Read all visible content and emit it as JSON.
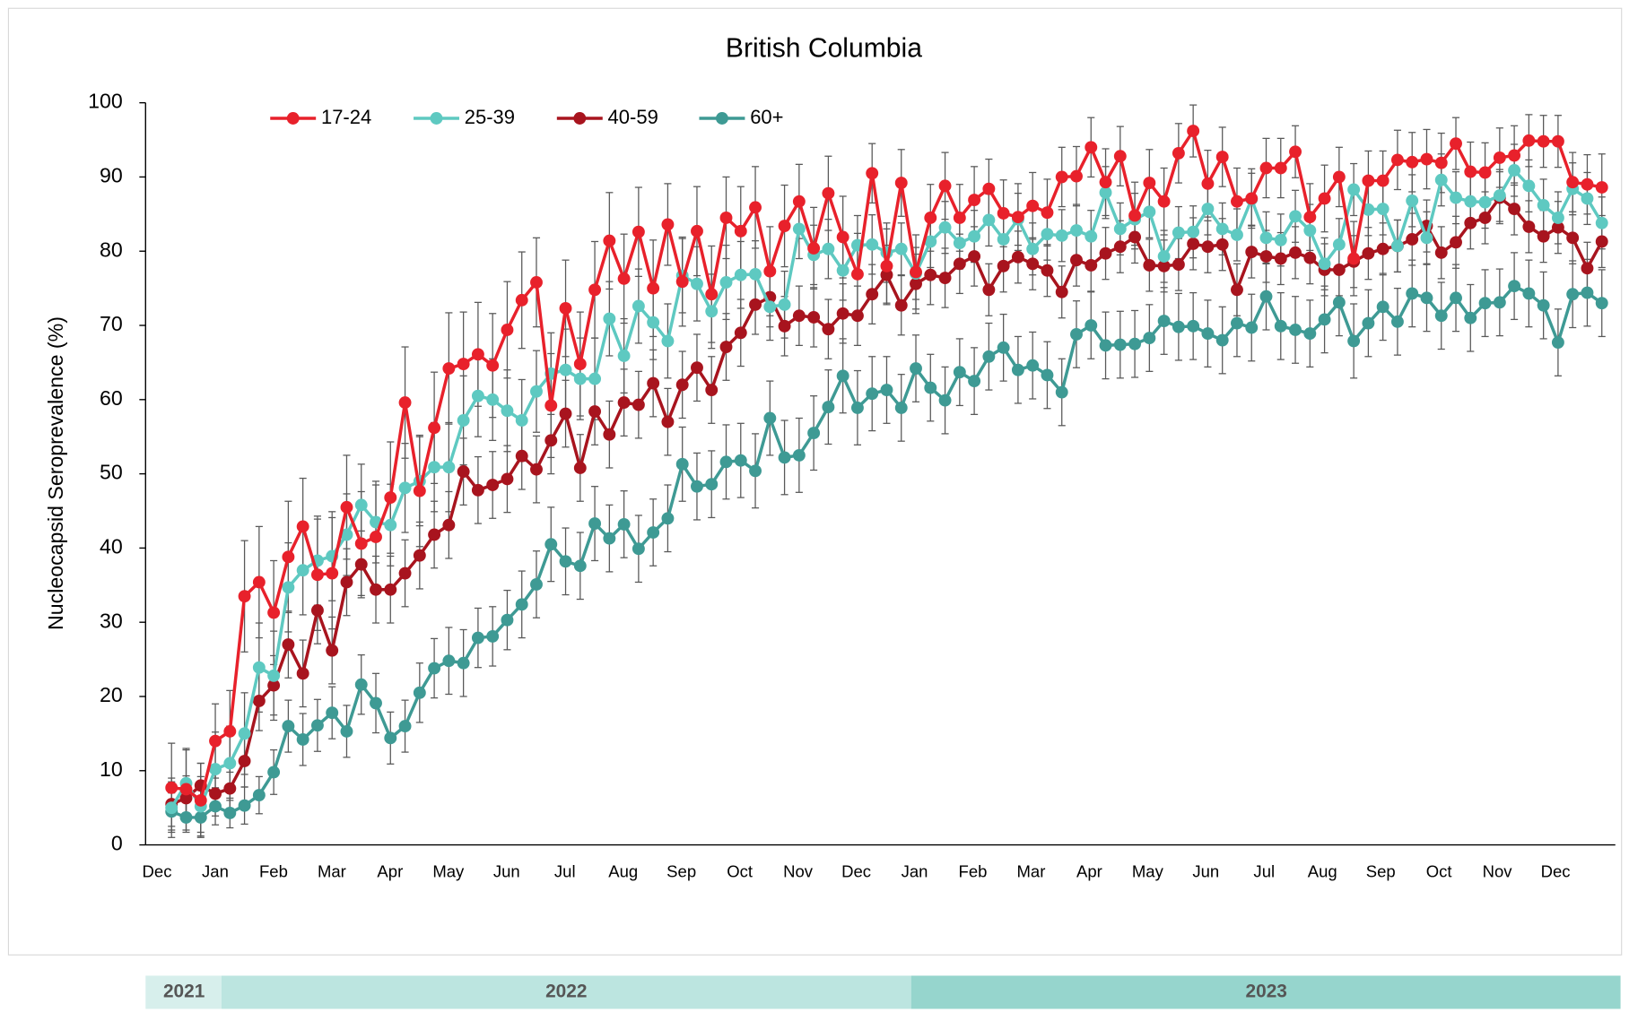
{
  "chart_data": {
    "type": "line",
    "title": "British Columbia",
    "y_label": "Nucleocapsid Seroprevalence (%)",
    "ylim": [
      0,
      100
    ],
    "yticks": [
      0,
      10,
      20,
      30,
      40,
      50,
      60,
      70,
      80,
      90,
      100
    ],
    "grid": false,
    "legend": "top-left",
    "error_bars": true,
    "month_labels": [
      "Dec",
      "Jan",
      "Feb",
      "Mar",
      "Apr",
      "May",
      "Jun",
      "Jul",
      "Aug",
      "Sep",
      "Oct",
      "Nov",
      "Dec",
      "Jan",
      "Feb",
      "Mar",
      "Apr",
      "May",
      "Jun",
      "Jul",
      "Aug",
      "Sep",
      "Oct",
      "Nov",
      "Dec"
    ],
    "year_labels": [
      "2021",
      "2022",
      "2023"
    ],
    "series": [
      {
        "name": "17-24",
        "color": "#e8212b",
        "values": [
          7.7,
          7.5,
          6.0,
          14,
          15.3,
          33.5,
          35.4,
          31.3,
          38.8,
          42.9,
          36.4,
          36.6,
          45.5,
          40.6,
          41.5,
          46.8,
          59.6,
          47.7,
          56.2,
          64.2,
          64.8,
          66.1,
          64.6,
          69.4,
          73.4,
          75.8,
          59.2,
          72.3,
          64.8,
          74.8,
          81.4,
          76.3,
          82.6,
          75.0,
          83.6,
          75.9,
          82.7,
          74.2,
          84.5,
          82.7,
          85.9,
          77.3,
          83.4,
          86.7,
          80.4,
          87.8,
          81.9,
          76.9,
          90.5,
          78.0,
          89.2,
          77.2,
          84.5,
          88.8,
          84.5,
          86.9,
          88.4,
          85.1,
          84.6,
          86.1,
          85.2,
          90.0,
          90.1,
          94.0,
          89.3,
          92.8,
          84.8,
          89.2,
          86.7,
          93.2,
          96.2,
          89.1,
          92.7,
          86.7,
          87.1,
          91.2,
          91.2,
          93.4,
          84.6,
          87.1,
          90.0,
          79.0,
          89.5,
          89.5,
          92.3,
          92.0,
          92.4,
          91.9,
          94.5,
          90.7,
          90.6,
          92.6,
          92.9,
          94.9,
          94.8,
          94.8,
          89.3,
          89.0,
          88.6
        ],
        "errors": [
          6,
          5.5,
          5,
          5,
          5.5,
          7.5,
          7.5,
          7,
          7.5,
          6.5,
          7.5,
          7.5,
          7,
          7,
          7,
          7.5,
          7.5,
          7.5,
          7.5,
          7.5,
          7,
          7,
          7,
          6.5,
          6.5,
          6,
          7,
          6.5,
          7,
          6.5,
          6.5,
          6,
          6,
          6.5,
          5.5,
          6,
          6,
          6.5,
          5.5,
          6,
          5.5,
          6,
          5.5,
          5,
          5.5,
          5,
          5.5,
          5.5,
          4,
          5,
          4.5,
          5,
          4.5,
          4.5,
          4.5,
          4.5,
          4,
          4.5,
          4.5,
          4.5,
          4.5,
          4,
          4,
          4,
          4.5,
          4,
          4.5,
          4.5,
          4.5,
          4,
          3.5,
          4.5,
          4,
          4.5,
          4,
          4,
          4,
          3.5,
          4.5,
          4.5,
          4,
          5,
          4,
          4,
          4,
          4,
          4,
          4,
          3.5,
          4,
          4,
          4,
          4,
          3.5,
          3.5,
          3.5,
          4,
          4,
          4.5
        ]
      },
      {
        "name": "25-39",
        "color": "#5ec9c1",
        "values": [
          5.0,
          8.3,
          5.2,
          10.2,
          11,
          15,
          23.9,
          22.8,
          34.7,
          37.0,
          38.3,
          38.9,
          41.8,
          45.8,
          43.5,
          43.1,
          48.1,
          49.0,
          50.9,
          50.9,
          57.2,
          60.5,
          60.0,
          58.5,
          57.2,
          61.1,
          63.5,
          64.0,
          62.8,
          62.8,
          70.9,
          65.9,
          72.6,
          70.4,
          67.9,
          76.7,
          75.6,
          71.9,
          75.8,
          76.8,
          76.9,
          72.5,
          72.8,
          83.0,
          79.5,
          80.3,
          77.4,
          80.8,
          80.9,
          79.8,
          80.3,
          77.0,
          81.3,
          83.2,
          81.1,
          82.0,
          84.2,
          81.6,
          84.3,
          80.3,
          82.3,
          82.1,
          82.8,
          82.0,
          87.9,
          83.0,
          84.3,
          85.3,
          79.3,
          82.5,
          82.6,
          85.7,
          83.0,
          82.2,
          87.0,
          81.8,
          81.5,
          84.7,
          82.8,
          78.3,
          80.9,
          88.3,
          85.6,
          85.7,
          80.7,
          86.8,
          81.8,
          89.6,
          87.2,
          86.7,
          86.6,
          87.5,
          90.9,
          88.8,
          86.2,
          84.5,
          88.4,
          87.1,
          83.8
        ],
        "errors": [
          4,
          4.5,
          4,
          5,
          5,
          5.5,
          6,
          6,
          6,
          6,
          6,
          6,
          5.5,
          5.5,
          5.5,
          5.5,
          6,
          6,
          6,
          6,
          6,
          5.5,
          5.5,
          5.5,
          5.5,
          5.5,
          5.5,
          5.5,
          5.5,
          5.5,
          5,
          5,
          5,
          5,
          5,
          5,
          5,
          5,
          5,
          4.5,
          4.5,
          4.5,
          4.5,
          4,
          4,
          4,
          4,
          4,
          4,
          4,
          3.5,
          3.5,
          3.5,
          3.5,
          3.5,
          3.5,
          3.5,
          3.5,
          3.5,
          3.5,
          3.5,
          3.5,
          3.5,
          3.5,
          3.5,
          3.5,
          3.5,
          3.5,
          3.5,
          3.5,
          3.5,
          3.5,
          3.5,
          3.5,
          3.5,
          3.5,
          3.5,
          3.5,
          3.5,
          3.5,
          3.5,
          3.5,
          3.5,
          3.5,
          3.5,
          3.5,
          3.5,
          3.5,
          3.5,
          3.5,
          3.5,
          3.5,
          3.5,
          3.5,
          3.5,
          3.5,
          3.5,
          3.5,
          3.5
        ]
      },
      {
        "name": "40-59",
        "color": "#a8141e",
        "values": [
          5.5,
          6.3,
          8.0,
          6.9,
          7.6,
          11.3,
          19.4,
          21.5,
          27.0,
          23.1,
          31.6,
          26.2,
          35.4,
          37.8,
          34.4,
          34.4,
          36.6,
          39.0,
          41.8,
          43.1,
          50.3,
          47.8,
          48.5,
          49.3,
          52.4,
          50.6,
          54.5,
          58.1,
          50.8,
          58.4,
          55.3,
          59.6,
          59.3,
          62.2,
          57.0,
          62.0,
          64.3,
          61.3,
          67.1,
          69.0,
          72.8,
          73.8,
          69.9,
          71.3,
          71.1,
          69.5,
          71.6,
          71.3,
          74.2,
          76.8,
          72.7,
          75.6,
          76.8,
          76.4,
          78.3,
          79.3,
          74.8,
          78.0,
          79.2,
          78.3,
          77.4,
          74.5,
          78.8,
          78.1,
          79.7,
          80.6,
          81.9,
          78.1,
          78.0,
          78.2,
          81.0,
          80.6,
          80.9,
          74.8,
          79.9,
          79.3,
          79.0,
          79.8,
          79.1,
          77.5,
          77.5,
          78.6,
          79.7,
          80.3,
          80.7,
          81.6,
          83.4,
          79.8,
          81.2,
          83.8,
          84.5,
          87.2,
          85.7,
          83.3,
          82.0,
          83.2,
          81.8,
          77.7,
          81.3
        ],
        "errors": [
          3,
          3,
          3,
          3,
          3,
          3.5,
          4,
          4,
          4.5,
          4.5,
          4.5,
          4.5,
          4.5,
          4.5,
          4.5,
          4.5,
          4.5,
          4.5,
          4.5,
          4.5,
          4.5,
          4.5,
          4.5,
          4.5,
          4.5,
          4.5,
          4.5,
          4.5,
          4.5,
          4.5,
          4.5,
          4.5,
          4.5,
          4.5,
          4.5,
          4.5,
          4.5,
          4.5,
          4.5,
          4.5,
          4,
          4,
          4,
          4,
          4,
          4,
          4,
          4,
          4,
          4,
          4,
          4,
          4,
          4,
          4,
          4,
          3.5,
          3.5,
          3.5,
          3.5,
          3.5,
          3.5,
          3.5,
          3.5,
          3.5,
          3.5,
          3.5,
          3.5,
          3.5,
          3.5,
          3.5,
          3.5,
          3.5,
          3.5,
          3.5,
          3.5,
          3.5,
          3.5,
          3.5,
          3.5,
          3.5,
          3.5,
          3.5,
          3.5,
          3.5,
          3.5,
          3.5,
          3.5,
          3.5,
          3.5,
          3.5,
          3.5,
          3.5,
          3.5,
          3.5,
          3.5,
          3.5,
          3.5,
          3.5
        ]
      },
      {
        "name": "60+",
        "color": "#3e9a94",
        "values": [
          4.5,
          3.7,
          3.7,
          5.2,
          4.3,
          5.3,
          6.7,
          9.8,
          16.0,
          14.2,
          16.1,
          17.8,
          15.3,
          21.6,
          19.1,
          14.4,
          16.0,
          20.5,
          23.8,
          24.8,
          24.5,
          27.9,
          28.1,
          30.3,
          32.4,
          35.1,
          40.5,
          38.2,
          37.6,
          43.3,
          41.3,
          43.2,
          39.9,
          42.1,
          44.0,
          51.3,
          48.3,
          48.6,
          51.6,
          51.8,
          50.4,
          57.5,
          52.2,
          52.5,
          55.5,
          59.0,
          63.2,
          58.9,
          60.8,
          61.3,
          58.9,
          64.2,
          61.6,
          59.9,
          63.7,
          62.5,
          65.8,
          67.0,
          64.0,
          64.6,
          63.3,
          61.0,
          68.8,
          70.0,
          67.3,
          67.4,
          67.5,
          68.3,
          70.6,
          69.8,
          69.9,
          68.9,
          68.0,
          70.3,
          69.7,
          73.9,
          69.9,
          69.4,
          68.9,
          70.8,
          73.1,
          67.9,
          70.3,
          72.5,
          70.5,
          74.3,
          73.7,
          71.3,
          73.7,
          71.0,
          73.0,
          73.1,
          75.3,
          74.3,
          72.7,
          67.7,
          74.2,
          74.4,
          73.0
        ],
        "errors": [
          2.5,
          2,
          2,
          2.5,
          2,
          2.5,
          2.5,
          3,
          3.5,
          3.5,
          3.5,
          3.5,
          3.5,
          4,
          4,
          3.5,
          3.5,
          4,
          4,
          4.5,
          4.5,
          4,
          4,
          4,
          4.5,
          4.5,
          5,
          4.5,
          4.5,
          5,
          4.5,
          4.5,
          4.5,
          4.5,
          4.5,
          5,
          4.5,
          4.5,
          5,
          5,
          5,
          5,
          5,
          5,
          5,
          5,
          5,
          5,
          5,
          4.5,
          4.5,
          4.5,
          4.5,
          4.5,
          4.5,
          4.5,
          4.5,
          4.5,
          4.5,
          4.5,
          4.5,
          4.5,
          4.5,
          4.5,
          4.5,
          4.5,
          4.5,
          4.5,
          4.5,
          4.5,
          4.5,
          4.5,
          4.5,
          4.5,
          4.5,
          4.5,
          4.5,
          4.5,
          4.5,
          4.5,
          4.5,
          5,
          4.5,
          4.5,
          4.5,
          4.5,
          4.5,
          4.5,
          4.5,
          4.5,
          4.5,
          4.5,
          4.5,
          4.5,
          4.5,
          4.5,
          4.5,
          4.5,
          4.5
        ]
      }
    ]
  }
}
